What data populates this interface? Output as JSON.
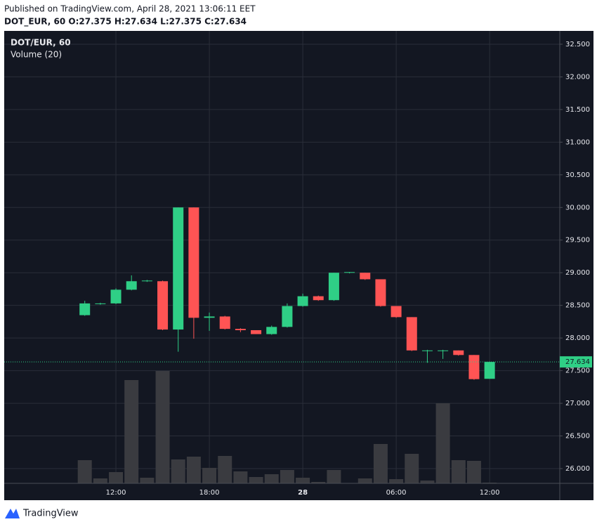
{
  "chart_data": {
    "type": "candlestick",
    "title": "Published on TradingView.com, April 28, 2021 13:06:11 EET",
    "subtitle": "DOT_EUR, 60 O:27.375 H:27.634 L:27.375 C:27.634",
    "symbol_label": "DOT/EUR, 60",
    "brand": "TradingView",
    "categories": [
      null,
      null,
      "12:00",
      null,
      null,
      null,
      null,
      null,
      "18:00",
      null,
      null,
      null,
      null,
      null,
      "28",
      null,
      null,
      null,
      null,
      null,
      "06:00",
      null,
      null,
      null,
      null,
      null,
      "12:00"
    ],
    "open": [
      28.35,
      28.52,
      28.53,
      28.74,
      28.87,
      28.87,
      28.13,
      30.0,
      28.31,
      28.33,
      28.14,
      28.12,
      28.06,
      28.17,
      28.49,
      28.64,
      28.58,
      29.0,
      29.0,
      28.9,
      28.49,
      28.32,
      27.8,
      27.8,
      27.81,
      27.74,
      27.375
    ],
    "high": [
      28.57,
      28.54,
      28.76,
      28.96,
      28.89,
      28.88,
      30.0,
      30.0,
      28.39,
      28.34,
      28.15,
      28.12,
      28.19,
      28.53,
      28.68,
      28.65,
      29.0,
      29.01,
      29.0,
      28.9,
      28.49,
      28.32,
      27.82,
      27.82,
      27.81,
      27.74,
      27.634
    ],
    "low": [
      28.34,
      28.51,
      28.52,
      28.73,
      28.86,
      28.12,
      27.79,
      27.99,
      28.11,
      28.13,
      28.09,
      28.06,
      28.05,
      28.16,
      28.48,
      28.57,
      28.57,
      28.99,
      28.89,
      28.48,
      28.31,
      27.8,
      27.62,
      27.68,
      27.73,
      27.36,
      27.375
    ],
    "close": [
      28.53,
      28.53,
      28.74,
      28.87,
      28.88,
      28.13,
      30.0,
      28.31,
      28.33,
      28.14,
      28.12,
      28.06,
      28.17,
      28.49,
      28.64,
      28.58,
      29.0,
      29.01,
      28.9,
      28.49,
      28.32,
      27.81,
      27.81,
      27.81,
      27.74,
      27.37,
      27.634
    ],
    "up_color": "#2fcf86",
    "down_color": "#ff5454",
    "volume": {
      "name": "Volume (20)",
      "color": "#3a3b40",
      "values": [
        33,
        7,
        16,
        147,
        8,
        160,
        34,
        38,
        22,
        39,
        17,
        9,
        13,
        19,
        8,
        2,
        19,
        0,
        7,
        56,
        6,
        42,
        4,
        114,
        33,
        32,
        1
      ],
      "ylim": [
        0,
        644
      ]
    },
    "ylim": [
      25.774,
      32.704
    ],
    "yticks": [
      {
        "value": 26,
        "label": "26.000"
      },
      {
        "value": 26.5,
        "label": "26.500"
      },
      {
        "value": 27,
        "label": "27.000"
      },
      {
        "value": 27.5,
        "label": "27.500"
      },
      {
        "value": 28,
        "label": "28.000"
      },
      {
        "value": 28.5,
        "label": "28.500"
      },
      {
        "value": 29,
        "label": "29.000"
      },
      {
        "value": 29.5,
        "label": "29.500"
      },
      {
        "value": 30,
        "label": "30.000"
      },
      {
        "value": 30.5,
        "label": "30.500"
      },
      {
        "value": 31,
        "label": "31.000"
      },
      {
        "value": 31.5,
        "label": "31.500"
      },
      {
        "value": 32,
        "label": "32.000"
      },
      {
        "value": 32.5,
        "label": "32.500"
      }
    ],
    "grid": true
  }
}
